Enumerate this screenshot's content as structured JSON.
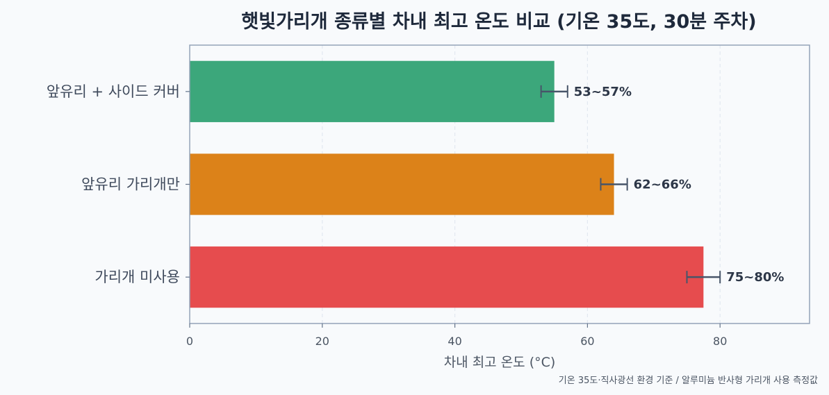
{
  "chart_data": {
    "type": "bar",
    "orientation": "horizontal",
    "title": "햇빛가리개 종류별 차내 최고 온도 비교 (기온 35도, 30분 주차)",
    "xlabel": "차내 최고 온도 (°C)",
    "ylabel": "",
    "xlim": [
      0,
      93.5
    ],
    "xticks": [
      0,
      20,
      40,
      60,
      80
    ],
    "grid": "x-dashed",
    "categories": [
      "앞유리 + 사이드 커버",
      "앞유리 가리개만",
      "가리개 미사용"
    ],
    "values": [
      55,
      64,
      77.5
    ],
    "error_low": [
      53,
      62,
      75
    ],
    "error_high": [
      57,
      66,
      80
    ],
    "data_labels": [
      "53~57%",
      "62~66%",
      "75~80%"
    ],
    "colors": [
      "#3ca77b",
      "#dc8219",
      "#e64c4e"
    ],
    "footnote": "기온 35도·직사광선 환경 기준 / 알루미늄 반사형 가리개 사용 측정값"
  }
}
